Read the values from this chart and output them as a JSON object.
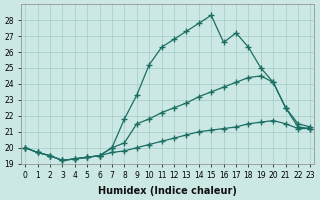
{
  "xlabel": "Humidex (Indice chaleur)",
  "bg_color": "#cce8e4",
  "grid_color": "#aacfcc",
  "line_color": "#1a6e64",
  "series": [
    {
      "x": [
        0,
        1,
        2,
        3,
        4,
        5,
        6,
        7,
        8,
        9,
        10,
        11,
        12,
        13,
        14,
        15,
        16,
        17,
        18,
        19,
        20,
        21,
        22,
        23
      ],
      "y": [
        20.0,
        19.7,
        19.5,
        19.2,
        19.3,
        19.4,
        19.5,
        20.0,
        21.8,
        23.3,
        25.2,
        26.3,
        26.8,
        27.3,
        27.8,
        28.3,
        26.6,
        27.2,
        26.3,
        25.0,
        24.1,
        22.5,
        21.3,
        21.2
      ]
    },
    {
      "x": [
        0,
        1,
        2,
        3,
        4,
        5,
        6,
        7,
        8,
        9,
        10,
        11,
        12,
        13,
        14,
        15,
        16,
        17,
        18,
        19,
        20,
        21,
        22,
        23
      ],
      "y": [
        20.0,
        19.7,
        19.5,
        19.2,
        19.3,
        19.4,
        19.5,
        20.0,
        20.3,
        21.5,
        21.8,
        22.2,
        22.5,
        22.8,
        23.2,
        23.5,
        23.8,
        24.1,
        24.4,
        24.5,
        24.1,
        22.5,
        21.5,
        21.3
      ]
    },
    {
      "x": [
        0,
        1,
        2,
        3,
        4,
        5,
        6,
        7,
        8,
        9,
        10,
        11,
        12,
        13,
        14,
        15,
        16,
        17,
        18,
        19,
        20,
        21,
        22,
        23
      ],
      "y": [
        20.0,
        19.7,
        19.5,
        19.2,
        19.3,
        19.4,
        19.5,
        19.7,
        19.8,
        20.0,
        20.2,
        20.4,
        20.6,
        20.8,
        21.0,
        21.1,
        21.2,
        21.3,
        21.5,
        21.6,
        21.7,
        21.5,
        21.2,
        21.2
      ]
    }
  ],
  "ylim": [
    19,
    29
  ],
  "yticks": [
    19,
    20,
    21,
    22,
    23,
    24,
    25,
    26,
    27,
    28
  ],
  "xlim": [
    -0.3,
    23.3
  ],
  "xticks": [
    0,
    1,
    2,
    3,
    4,
    5,
    6,
    7,
    8,
    9,
    10,
    11,
    12,
    13,
    14,
    15,
    16,
    17,
    18,
    19,
    20,
    21,
    22,
    23
  ],
  "marker": "+",
  "markersize": 4,
  "linewidth": 0.9,
  "tick_fontsize": 5.5,
  "xlabel_fontsize": 7
}
